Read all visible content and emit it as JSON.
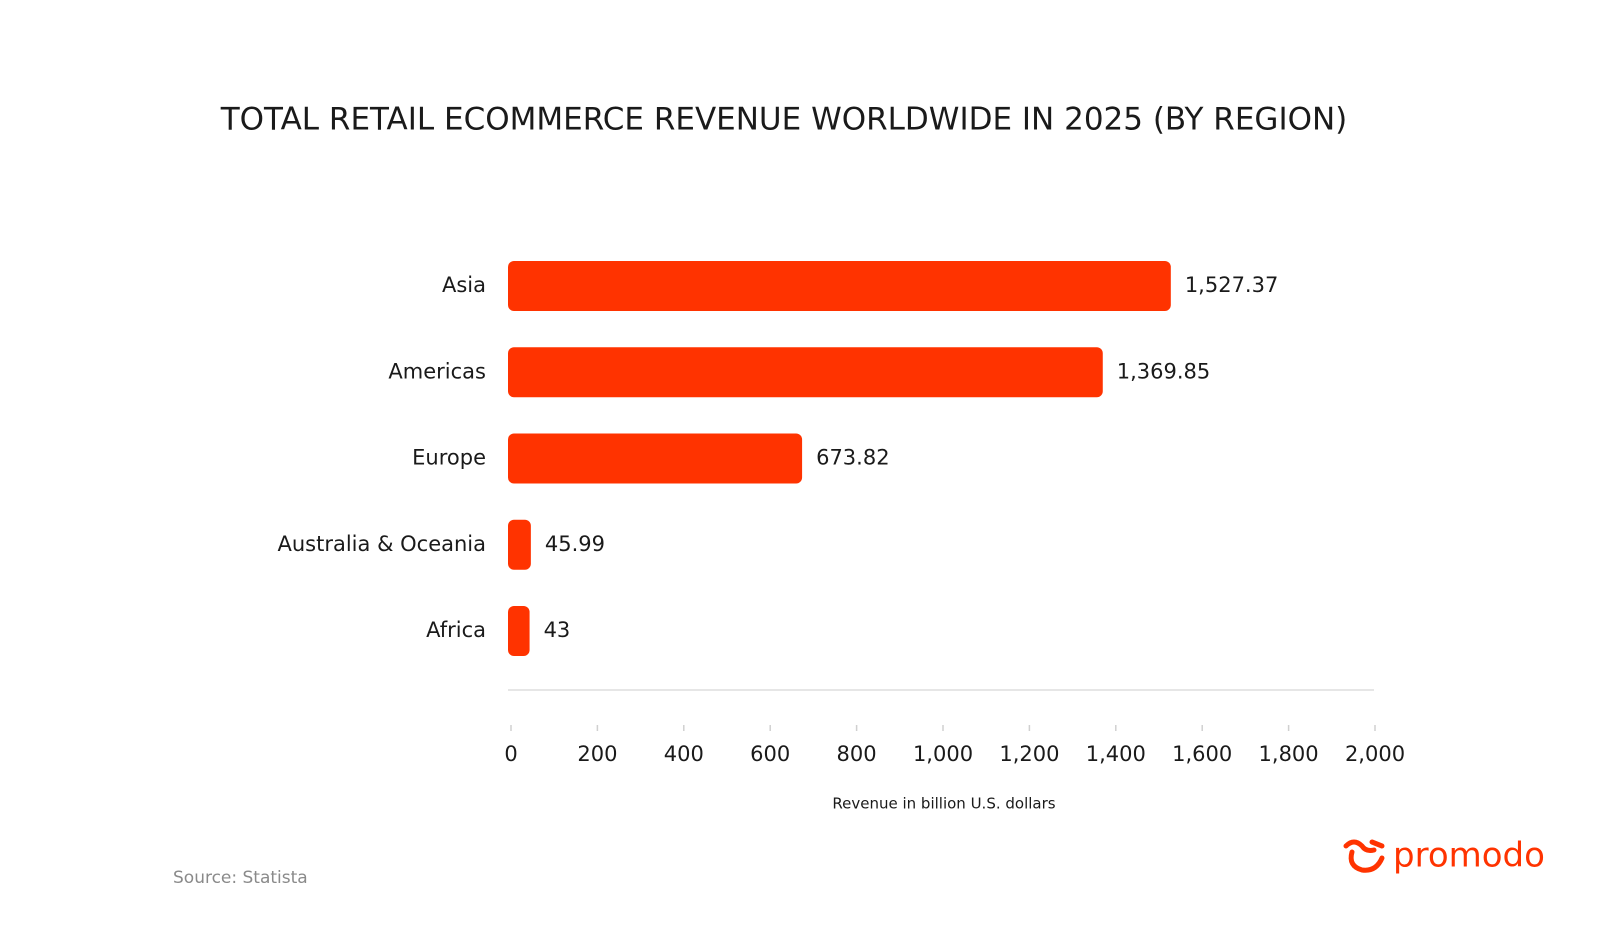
{
  "chart_data": {
    "type": "barh",
    "title": "TOTAL RETAIL ECOMMERCE REVENUE WORLDWIDE IN 2025 (BY REGION)",
    "categories": [
      "Asia",
      "Americas",
      "Europe",
      "Australia & Oceania",
      "Africa"
    ],
    "values": [
      1527.37,
      1369.85,
      673.82,
      45.99,
      43
    ],
    "value_labels": [
      "1,527.37",
      "1,369.85",
      "673.82",
      "45.99",
      "43"
    ],
    "color": "#ff3300",
    "xlim": [
      0,
      2000
    ],
    "xticks": [
      0,
      200,
      400,
      600,
      800,
      {
        "value": 1000,
        "label": "1,000"
      },
      {
        "value": 1200,
        "label": "1,200"
      },
      {
        "value": 1400,
        "label": "1,400"
      },
      {
        "value": 1600,
        "label": "1,600"
      },
      {
        "value": 1800,
        "label": "1,800"
      },
      {
        "value": 2000,
        "label": "2,000"
      }
    ],
    "xlabel": "Revenue in billion U.S. dollars",
    "grid": false,
    "source": "Source: Statista"
  },
  "brand": "promodo"
}
